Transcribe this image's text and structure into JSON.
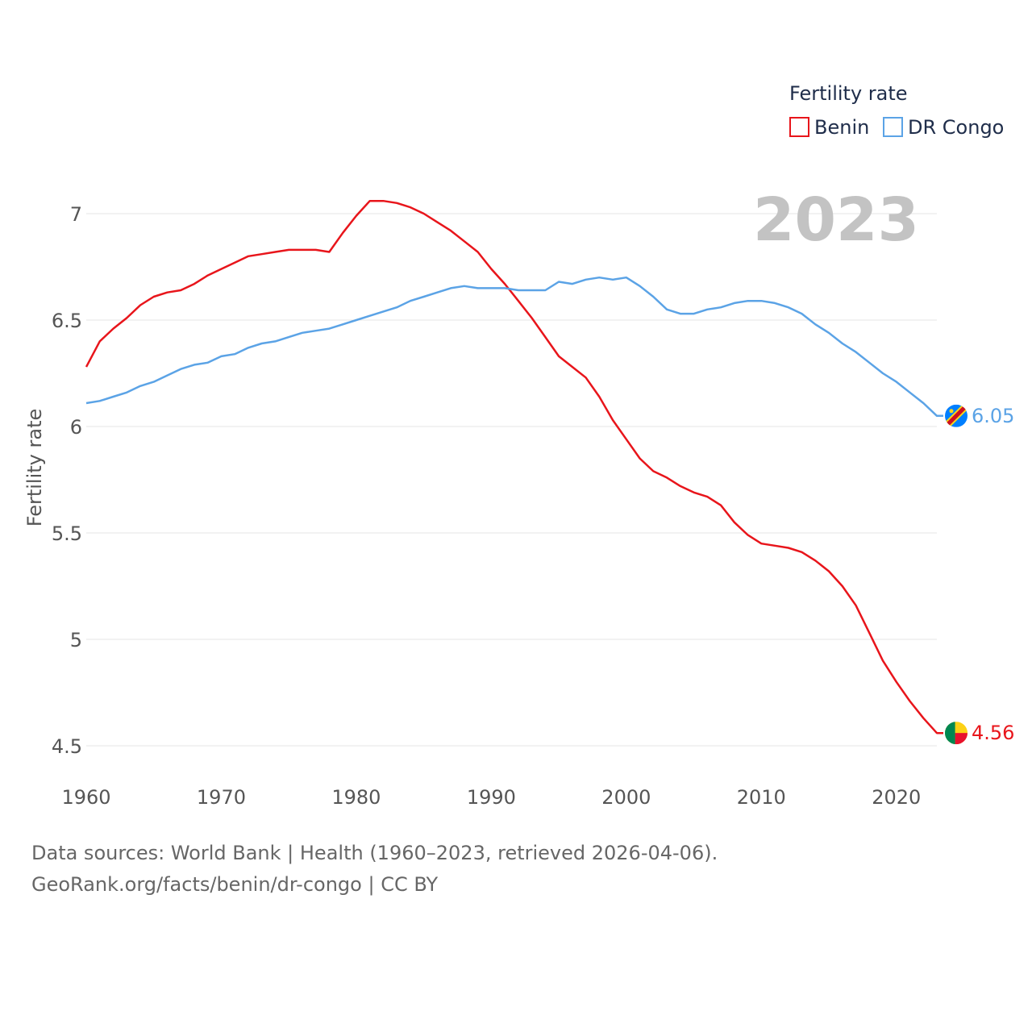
{
  "chart_data": {
    "type": "line",
    "title": "Fertility rate",
    "year_badge": "2023",
    "xlabel": "",
    "ylabel": "Fertility rate",
    "xlim": [
      1960,
      2023
    ],
    "ylim": [
      4.5,
      7.0
    ],
    "x_ticks": [
      1960,
      1970,
      1980,
      1990,
      2000,
      2010,
      2020
    ],
    "y_ticks": [
      4.5,
      5,
      5.5,
      6,
      6.5,
      7
    ],
    "y_tick_labels": [
      "4.5",
      "5",
      "5.5",
      "6",
      "6.5",
      "7"
    ],
    "legend_title": "Fertility rate",
    "legend_position": "top-right",
    "x": [
      1960,
      1961,
      1962,
      1963,
      1964,
      1965,
      1966,
      1967,
      1968,
      1969,
      1970,
      1971,
      1972,
      1973,
      1974,
      1975,
      1976,
      1977,
      1978,
      1979,
      1980,
      1981,
      1982,
      1983,
      1984,
      1985,
      1986,
      1987,
      1988,
      1989,
      1990,
      1991,
      1992,
      1993,
      1994,
      1995,
      1996,
      1997,
      1998,
      1999,
      2000,
      2001,
      2002,
      2003,
      2004,
      2005,
      2006,
      2007,
      2008,
      2009,
      2010,
      2011,
      2012,
      2013,
      2014,
      2015,
      2016,
      2017,
      2018,
      2019,
      2020,
      2021,
      2022,
      2023
    ],
    "series": [
      {
        "name": "Benin",
        "color": "#e8151b",
        "end_label": "4.56",
        "values": [
          6.28,
          6.4,
          6.46,
          6.51,
          6.57,
          6.61,
          6.63,
          6.64,
          6.67,
          6.71,
          6.74,
          6.77,
          6.8,
          6.81,
          6.82,
          6.83,
          6.83,
          6.83,
          6.82,
          6.91,
          6.99,
          7.06,
          7.06,
          7.05,
          7.03,
          7.0,
          6.96,
          6.92,
          6.87,
          6.82,
          6.74,
          6.67,
          6.59,
          6.51,
          6.42,
          6.33,
          6.28,
          6.23,
          6.14,
          6.03,
          5.94,
          5.85,
          5.79,
          5.76,
          5.72,
          5.69,
          5.67,
          5.63,
          5.55,
          5.49,
          5.45,
          5.44,
          5.43,
          5.41,
          5.37,
          5.32,
          5.25,
          5.16,
          5.03,
          4.9,
          4.8,
          4.71,
          4.63,
          4.56
        ]
      },
      {
        "name": "DR Congo",
        "color": "#5ba3e6",
        "end_label": "6.05",
        "values": [
          6.11,
          6.12,
          6.14,
          6.16,
          6.19,
          6.21,
          6.24,
          6.27,
          6.29,
          6.3,
          6.33,
          6.34,
          6.37,
          6.39,
          6.4,
          6.42,
          6.44,
          6.45,
          6.46,
          6.48,
          6.5,
          6.52,
          6.54,
          6.56,
          6.59,
          6.61,
          6.63,
          6.65,
          6.66,
          6.65,
          6.65,
          6.65,
          6.64,
          6.64,
          6.64,
          6.68,
          6.67,
          6.69,
          6.7,
          6.69,
          6.7,
          6.66,
          6.61,
          6.55,
          6.53,
          6.53,
          6.55,
          6.56,
          6.58,
          6.59,
          6.59,
          6.58,
          6.56,
          6.53,
          6.48,
          6.44,
          6.39,
          6.35,
          6.3,
          6.25,
          6.21,
          6.16,
          6.11,
          6.05
        ]
      }
    ]
  },
  "footer": {
    "line1": "Data sources: World Bank | Health (1960–2023, retrieved 2026-04-06).",
    "line2": "GeoRank.org/facts/benin/dr-congo | CC BY"
  },
  "flag_icons": {
    "benin": "benin-flag-icon",
    "dr_congo": "dr-congo-flag-icon"
  }
}
